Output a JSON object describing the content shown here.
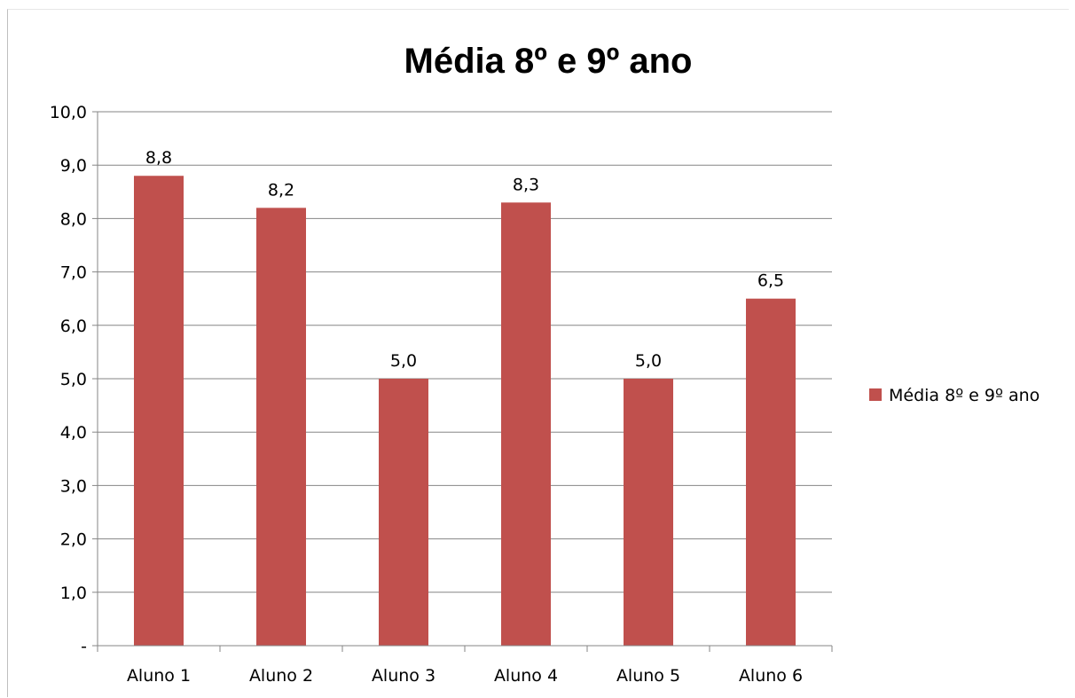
{
  "chart_data": {
    "type": "bar",
    "title": "Média 8º e 9º ano",
    "categories": [
      "Aluno 1",
      "Aluno 2",
      "Aluno 3",
      "Aluno 4",
      "Aluno 5",
      "Aluno 6"
    ],
    "series": [
      {
        "name": "Média 8º e 9º ano",
        "values": [
          8.8,
          8.2,
          5.0,
          8.3,
          5.0,
          6.5
        ],
        "data_labels": [
          "8,8",
          "8,2",
          "5,0",
          "8,3",
          "5,0",
          "6,5"
        ],
        "color": "#c0504d"
      }
    ],
    "ylim": [
      0,
      10
    ],
    "y_ticks": [
      0,
      1,
      2,
      3,
      4,
      5,
      6,
      7,
      8,
      9,
      10
    ],
    "y_tick_labels": [
      "-",
      "1,0",
      "2,0",
      "3,0",
      "4,0",
      "5,0",
      "6,0",
      "7,0",
      "8,0",
      "9,0",
      "10,0"
    ],
    "grid": true,
    "legend_position": "right",
    "xlabel": "",
    "ylabel": ""
  }
}
